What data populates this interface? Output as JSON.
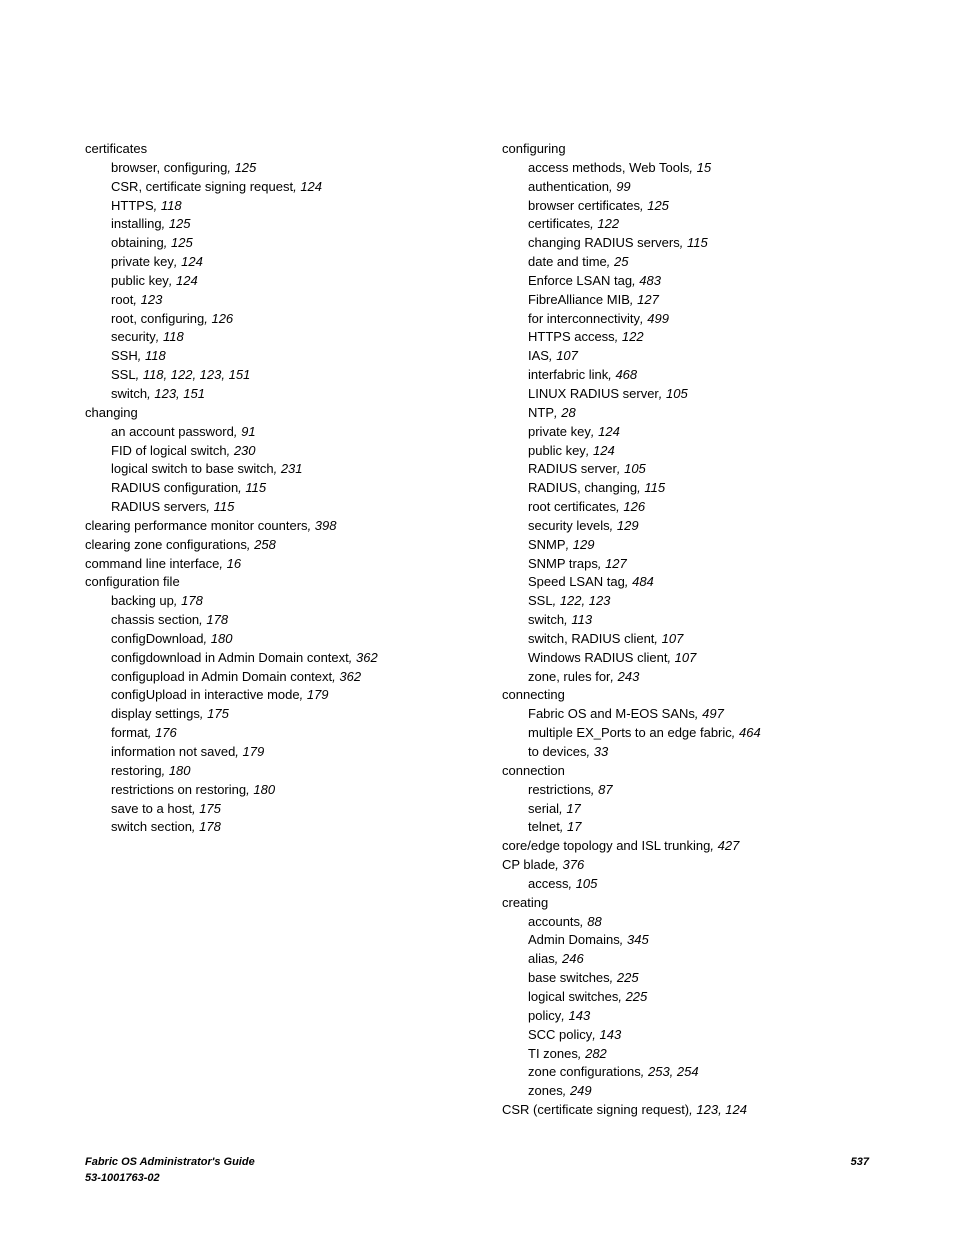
{
  "footer": {
    "title": "Fabric OS Administrator's Guide",
    "doc_number": "53-1001763-02",
    "page_number": "537"
  },
  "left_column": [
    {
      "type": "head",
      "text": "certificates"
    },
    {
      "type": "sub",
      "text": "browser, configuring",
      "pages": "125"
    },
    {
      "type": "sub",
      "text": "CSR, certificate signing request",
      "pages": "124"
    },
    {
      "type": "sub",
      "text": "HTTPS",
      "pages": "118"
    },
    {
      "type": "sub",
      "text": "installing",
      "pages": "125"
    },
    {
      "type": "sub",
      "text": "obtaining",
      "pages": "125"
    },
    {
      "type": "sub",
      "text": "private key",
      "pages": "124"
    },
    {
      "type": "sub",
      "text": "public key",
      "pages": "124"
    },
    {
      "type": "sub",
      "text": "root",
      "pages": "123"
    },
    {
      "type": "sub",
      "text": "root, configuring",
      "pages": "126"
    },
    {
      "type": "sub",
      "text": "security",
      "pages": "118"
    },
    {
      "type": "sub",
      "text": "SSH",
      "pages": "118"
    },
    {
      "type": "sub",
      "text": "SSL",
      "pages": "118, 122, 123, 151"
    },
    {
      "type": "sub",
      "text": "switch",
      "pages": "123, 151"
    },
    {
      "type": "head",
      "text": "changing"
    },
    {
      "type": "sub",
      "text": "an account password",
      "pages": "91"
    },
    {
      "type": "sub",
      "text": "FID of logical switch",
      "pages": "230"
    },
    {
      "type": "sub",
      "text": "logical switch to base switch",
      "pages": "231"
    },
    {
      "type": "sub",
      "text": "RADIUS configuration",
      "pages": "115"
    },
    {
      "type": "sub",
      "text": "RADIUS servers",
      "pages": "115"
    },
    {
      "type": "head",
      "text": "clearing performance monitor counters",
      "pages": "398"
    },
    {
      "type": "head",
      "text": "clearing zone configurations",
      "pages": "258"
    },
    {
      "type": "head",
      "text": "command line interface",
      "pages": "16"
    },
    {
      "type": "head",
      "text": "configuration file"
    },
    {
      "type": "sub",
      "text": "backing up",
      "pages": "178"
    },
    {
      "type": "sub",
      "text": "chassis section",
      "pages": "178"
    },
    {
      "type": "sub",
      "text": "configDownload",
      "pages": "180"
    },
    {
      "type": "sub",
      "text": "configdownload in Admin Domain context",
      "pages": "362"
    },
    {
      "type": "sub",
      "text": "configupload in Admin Domain context",
      "pages": "362"
    },
    {
      "type": "sub",
      "text": "configUpload in interactive mode",
      "pages": "179"
    },
    {
      "type": "sub",
      "text": "display settings",
      "pages": "175"
    },
    {
      "type": "sub",
      "text": "format",
      "pages": "176"
    },
    {
      "type": "sub",
      "text": "information not saved",
      "pages": "179"
    },
    {
      "type": "sub",
      "text": "restoring",
      "pages": "180"
    },
    {
      "type": "sub",
      "text": "restrictions on restoring",
      "pages": "180"
    },
    {
      "type": "sub",
      "text": "save to a host",
      "pages": "175"
    },
    {
      "type": "sub",
      "text": "switch section",
      "pages": "178"
    }
  ],
  "right_column": [
    {
      "type": "head",
      "text": "configuring"
    },
    {
      "type": "sub",
      "text": "access methods, Web Tools",
      "pages": "15"
    },
    {
      "type": "sub",
      "text": "authentication",
      "pages": "99"
    },
    {
      "type": "sub",
      "text": "browser certificates",
      "pages": "125"
    },
    {
      "type": "sub",
      "text": "certificates",
      "pages": "122"
    },
    {
      "type": "sub",
      "text": "changing RADIUS servers",
      "pages": "115"
    },
    {
      "type": "sub",
      "text": "date and time",
      "pages": "25"
    },
    {
      "type": "sub",
      "text": "Enforce LSAN tag",
      "pages": "483"
    },
    {
      "type": "sub",
      "text": "FibreAlliance MIB",
      "pages": "127"
    },
    {
      "type": "sub",
      "text": "for interconnectivity",
      "pages": "499"
    },
    {
      "type": "sub",
      "text": "HTTPS access",
      "pages": "122"
    },
    {
      "type": "sub",
      "text": "IAS",
      "pages": "107"
    },
    {
      "type": "sub",
      "text": "interfabric link",
      "pages": "468"
    },
    {
      "type": "sub",
      "text": "LINUX RADIUS server",
      "pages": "105"
    },
    {
      "type": "sub",
      "text": "NTP",
      "pages": "28"
    },
    {
      "type": "sub",
      "text": "private key",
      "pages": "124"
    },
    {
      "type": "sub",
      "text": "public key",
      "pages": "124"
    },
    {
      "type": "sub",
      "text": "RADIUS server",
      "pages": "105"
    },
    {
      "type": "sub",
      "text": "RADIUS, changing",
      "pages": "115"
    },
    {
      "type": "sub",
      "text": "root certificates",
      "pages": "126"
    },
    {
      "type": "sub",
      "text": "security levels",
      "pages": "129"
    },
    {
      "type": "sub",
      "text": "SNMP",
      "pages": "129"
    },
    {
      "type": "sub",
      "text": "SNMP traps",
      "pages": "127"
    },
    {
      "type": "sub",
      "text": "Speed LSAN tag",
      "pages": "484"
    },
    {
      "type": "sub",
      "text": "SSL",
      "pages": "122, 123"
    },
    {
      "type": "sub",
      "text": "switch",
      "pages": "113"
    },
    {
      "type": "sub",
      "text": "switch, RADIUS client",
      "pages": "107"
    },
    {
      "type": "sub",
      "text": "Windows RADIUS client",
      "pages": "107"
    },
    {
      "type": "sub",
      "text": "zone, rules for",
      "pages": "243"
    },
    {
      "type": "head",
      "text": "connecting"
    },
    {
      "type": "sub",
      "text": "Fabric OS and M-EOS SANs",
      "pages": "497"
    },
    {
      "type": "sub",
      "text": "multiple EX_Ports to an edge fabric",
      "pages": "464"
    },
    {
      "type": "sub",
      "text": "to devices",
      "pages": "33"
    },
    {
      "type": "head",
      "text": "connection"
    },
    {
      "type": "sub",
      "text": "restrictions",
      "pages": "87"
    },
    {
      "type": "sub",
      "text": "serial",
      "pages": "17"
    },
    {
      "type": "sub",
      "text": "telnet",
      "pages": "17"
    },
    {
      "type": "head",
      "text": "core/edge topology and ISL trunking",
      "pages": "427"
    },
    {
      "type": "head",
      "text": "CP blade",
      "pages": "376"
    },
    {
      "type": "sub",
      "text": "access",
      "pages": "105"
    },
    {
      "type": "head",
      "text": "creating"
    },
    {
      "type": "sub",
      "text": "accounts",
      "pages": "88"
    },
    {
      "type": "sub",
      "text": "Admin Domains",
      "pages": "345"
    },
    {
      "type": "sub",
      "text": "alias",
      "pages": "246"
    },
    {
      "type": "sub",
      "text": "base switches",
      "pages": "225"
    },
    {
      "type": "sub",
      "text": "logical switches",
      "pages": "225"
    },
    {
      "type": "sub",
      "text": "policy",
      "pages": "143"
    },
    {
      "type": "sub",
      "text": "SCC policy",
      "pages": "143"
    },
    {
      "type": "sub",
      "text": "TI zones",
      "pages": "282"
    },
    {
      "type": "sub",
      "text": "zone configurations",
      "pages": "253, 254"
    },
    {
      "type": "sub",
      "text": "zones",
      "pages": "249"
    },
    {
      "type": "head",
      "text": "CSR (certificate signing request)",
      "pages": "123, 124"
    }
  ]
}
